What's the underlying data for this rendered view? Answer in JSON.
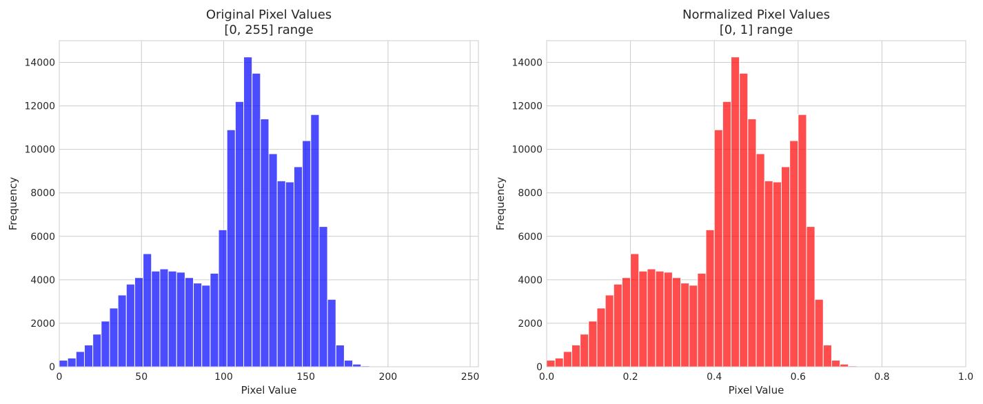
{
  "chart_data": [
    {
      "type": "bar",
      "title": "Original Pixel Values",
      "subtitle": "[0, 255] range",
      "xlabel": "Pixel Value",
      "ylabel": "Frequency",
      "xlim": [
        0,
        255
      ],
      "ylim": [
        0,
        15000
      ],
      "xticks": [
        0,
        50,
        100,
        150,
        200,
        250
      ],
      "xtick_labels": [
        "0",
        "50",
        "100",
        "150",
        "200",
        "250"
      ],
      "yticks": [
        0,
        2000,
        4000,
        6000,
        8000,
        10000,
        12000,
        14000
      ],
      "ytick_labels": [
        "0",
        "2000",
        "4000",
        "6000",
        "8000",
        "10000",
        "12000",
        "14000"
      ],
      "grid": true,
      "color": "#0000ff",
      "bin_edges": [
        0,
        5.1,
        10.2,
        15.3,
        20.4,
        25.5,
        30.6,
        35.7,
        40.8,
        45.9,
        51.0,
        56.1,
        61.2,
        66.3,
        71.4,
        76.5,
        81.6,
        86.7,
        91.8,
        96.9,
        102.0,
        107.1,
        112.2,
        117.3,
        122.4,
        127.5,
        132.6,
        137.7,
        142.8,
        147.9,
        153.0,
        158.1,
        163.2,
        168.3,
        173.4,
        178.5,
        183.6,
        188.7,
        193.8,
        198.9,
        204.0,
        209.1,
        214.2,
        219.3,
        224.4,
        229.5,
        234.6,
        239.7,
        244.8,
        249.9,
        255.0
      ],
      "values": [
        300,
        400,
        700,
        1000,
        1500,
        2100,
        2700,
        3300,
        3800,
        4100,
        5200,
        4400,
        4500,
        4400,
        4350,
        4100,
        3850,
        3750,
        4300,
        6300,
        10900,
        12200,
        14250,
        13500,
        11400,
        9800,
        8550,
        8500,
        9200,
        10400,
        11600,
        6450,
        3100,
        1000,
        300,
        120,
        40,
        10,
        0,
        0,
        0,
        0,
        0,
        0,
        0,
        0,
        0,
        0,
        0,
        0
      ]
    },
    {
      "type": "bar",
      "title": "Normalized Pixel Values",
      "subtitle": "[0, 1] range",
      "xlabel": "Pixel Value",
      "ylabel": "Frequency",
      "xlim": [
        0,
        1
      ],
      "ylim": [
        0,
        15000
      ],
      "xticks": [
        0,
        0.2,
        0.4,
        0.6,
        0.8,
        1.0
      ],
      "xtick_labels": [
        "0.0",
        "0.2",
        "0.4",
        "0.6",
        "0.8",
        "1.0"
      ],
      "yticks": [
        0,
        2000,
        4000,
        6000,
        8000,
        10000,
        12000,
        14000
      ],
      "ytick_labels": [
        "0",
        "2000",
        "4000",
        "6000",
        "8000",
        "10000",
        "12000",
        "14000"
      ],
      "grid": true,
      "color": "#ff0000",
      "bin_edges": [
        0,
        0.02,
        0.04,
        0.06,
        0.08,
        0.1,
        0.12,
        0.14,
        0.16,
        0.18,
        0.2,
        0.22,
        0.24,
        0.26,
        0.28,
        0.3,
        0.32,
        0.34,
        0.36,
        0.38,
        0.4,
        0.42,
        0.44,
        0.46,
        0.48,
        0.5,
        0.52,
        0.54,
        0.56,
        0.58,
        0.6,
        0.62,
        0.64,
        0.66,
        0.68,
        0.7,
        0.72,
        0.74,
        0.76,
        0.78,
        0.8,
        0.82,
        0.84,
        0.86,
        0.88,
        0.9,
        0.92,
        0.94,
        0.96,
        0.98,
        1.0
      ],
      "values": [
        300,
        400,
        700,
        1000,
        1500,
        2100,
        2700,
        3300,
        3800,
        4100,
        5200,
        4400,
        4500,
        4400,
        4350,
        4100,
        3850,
        3750,
        4300,
        6300,
        10900,
        12200,
        14250,
        13500,
        11400,
        9800,
        8550,
        8500,
        9200,
        10400,
        11600,
        6450,
        3100,
        1000,
        300,
        120,
        40,
        10,
        0,
        0,
        0,
        0,
        0,
        0,
        0,
        0,
        0,
        0,
        0,
        0
      ]
    }
  ]
}
